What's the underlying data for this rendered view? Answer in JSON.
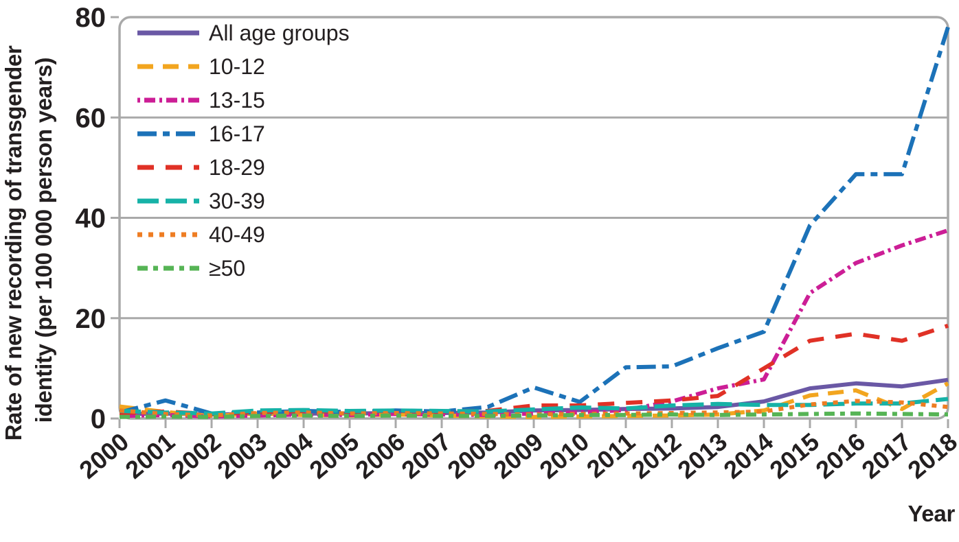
{
  "figure": {
    "y_axis_title_line1": "Rate of new recording of transgender",
    "y_axis_title_line2": "identity (per 100 000 person years)",
    "x_axis_title": "Year"
  },
  "plot_style": {
    "background_color": "#ffffff",
    "grid_color": "#a9a9a9",
    "border_color": "#a9a9a9",
    "tick_color": "#a9a9a9",
    "text_color": "#231f20"
  },
  "chart_data": {
    "type": "line",
    "title": "",
    "xlabel": "Year",
    "ylabel": "Rate of new recording of transgender identity (per 100 000 person years)",
    "x": [
      2000,
      2001,
      2002,
      2003,
      2004,
      2005,
      2006,
      2007,
      2008,
      2009,
      2010,
      2011,
      2012,
      2013,
      2014,
      2015,
      2016,
      2017,
      2018
    ],
    "ylim": [
      0,
      80
    ],
    "yticks": [
      0,
      20,
      40,
      60,
      80
    ],
    "grid": true,
    "legend_position": "top-left",
    "series": [
      {
        "name": "All age groups",
        "color": "#6a58a5",
        "line_style": "solid",
        "dash_pattern": "",
        "values": [
          0.9,
          1.0,
          0.8,
          0.9,
          1.0,
          1.0,
          1.1,
          1.1,
          1.2,
          1.6,
          1.7,
          1.9,
          2.0,
          2.3,
          3.4,
          6.0,
          7.0,
          6.4,
          7.7
        ]
      },
      {
        "name": "10-12",
        "color": "#f2a51f",
        "line_style": "dashed",
        "dash_pattern": "23 14",
        "values": [
          2.4,
          1.3,
          0.5,
          1.0,
          0.7,
          0.6,
          0.8,
          0.6,
          0.4,
          0.3,
          0.4,
          0.5,
          0.6,
          0.8,
          1.6,
          4.6,
          5.6,
          1.9,
          7.0
        ]
      },
      {
        "name": "13-15",
        "color": "#cc1e96",
        "line_style": "dot-dash-dense",
        "dash_pattern": "4 6 16 6",
        "values": [
          0.5,
          0.7,
          0.4,
          0.6,
          0.8,
          0.7,
          0.9,
          0.8,
          0.7,
          1.0,
          1.2,
          1.7,
          3.4,
          6.0,
          7.8,
          25.0,
          31.0,
          34.5,
          37.5
        ]
      },
      {
        "name": "16-17",
        "color": "#1c72b8",
        "line_style": "dash-dot-dash",
        "dash_pattern": "28 9 10 9",
        "values": [
          1.2,
          3.6,
          1.0,
          1.2,
          1.5,
          1.3,
          1.6,
          1.4,
          2.3,
          6.2,
          3.3,
          10.2,
          10.4,
          14.0,
          17.3,
          38.5,
          48.7,
          48.7,
          78.0
        ]
      },
      {
        "name": "18-29",
        "color": "#e03126",
        "line_style": "dashed-wide",
        "dash_pattern": "24 17",
        "values": [
          1.1,
          1.4,
          0.9,
          1.3,
          1.5,
          1.4,
          1.5,
          1.4,
          1.5,
          2.6,
          2.6,
          3.1,
          3.6,
          4.5,
          10.0,
          15.5,
          16.9,
          15.5,
          18.5
        ]
      },
      {
        "name": "30-39",
        "color": "#16b2a7",
        "line_style": "long-dash",
        "dash_pattern": "31 10",
        "values": [
          1.5,
          1.2,
          1.0,
          1.6,
          1.7,
          1.5,
          1.6,
          1.5,
          1.4,
          1.8,
          2.2,
          2.0,
          2.6,
          2.9,
          2.7,
          2.7,
          3.0,
          3.0,
          3.9
        ]
      },
      {
        "name": "40-49",
        "color": "#ee7d23",
        "line_style": "dotted",
        "dash_pattern": "7 9",
        "values": [
          1.6,
          0.9,
          0.6,
          1.1,
          1.2,
          1.0,
          1.1,
          1.0,
          0.9,
          0.8,
          0.9,
          1.0,
          1.1,
          1.2,
          1.4,
          2.8,
          3.5,
          3.2,
          2.3
        ]
      },
      {
        "name": "≥50",
        "color": "#56b455",
        "line_style": "dash-dot",
        "dash_pattern": "15 8 7 8",
        "values": [
          0.3,
          0.4,
          0.3,
          0.5,
          0.6,
          0.5,
          0.6,
          0.5,
          0.5,
          0.6,
          0.7,
          0.7,
          0.8,
          0.7,
          0.8,
          0.9,
          1.0,
          0.9,
          0.8
        ]
      }
    ]
  }
}
